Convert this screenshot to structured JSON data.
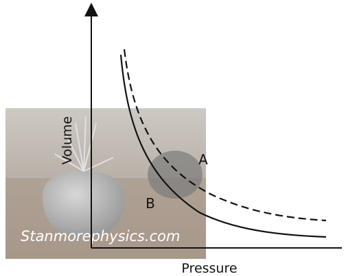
{
  "axes": {
    "y_label": "Volume",
    "x_label": "Pressure"
  },
  "curves": {
    "a_label": "A",
    "b_label": "B"
  },
  "watermark": "Stanmorephysics.com"
}
